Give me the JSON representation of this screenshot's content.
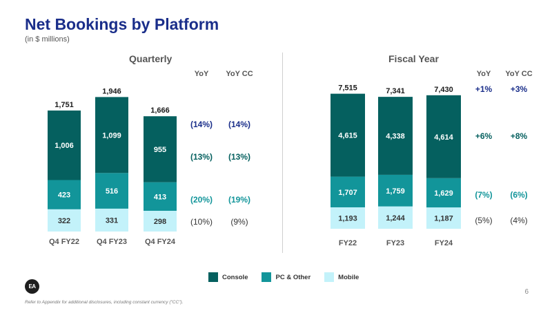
{
  "title": "Net Bookings by Platform",
  "subtitle": "(in $ millions)",
  "page_number": "6",
  "footnote": "Refer to Appendix for additional disclosures, including constant currency (\"CC\").",
  "logo_text": "EA",
  "colors": {
    "console": "#05605f",
    "pc_other": "#12959a",
    "mobile": "#c3f2fa"
  },
  "chart_data": [
    {
      "type": "bar",
      "stacked": true,
      "title": "Quarterly",
      "categories": [
        "Q4 FY22",
        "Q4 FY23",
        "Q4 FY24"
      ],
      "series": [
        {
          "name": "Mobile",
          "values": [
            322,
            331,
            298
          ]
        },
        {
          "name": "PC & Other",
          "values": [
            423,
            516,
            413
          ]
        },
        {
          "name": "Console",
          "values": [
            1006,
            1099,
            955
          ]
        }
      ],
      "value_labels": {
        "Mobile": [
          "322",
          "331",
          "298"
        ],
        "PC & Other": [
          "423",
          "516",
          "413"
        ],
        "Console": [
          "1,006",
          "1,099",
          "955"
        ]
      },
      "totals": [
        1751,
        1946,
        1666
      ],
      "total_labels": [
        "1,751",
        "1,946",
        "1,666"
      ],
      "yoy_headers": [
        "YoY",
        "YoY CC"
      ],
      "yoy": {
        "total": [
          "(14%)",
          "(14%)"
        ],
        "Console": [
          "(13%)",
          "(13%)"
        ],
        "PC & Other": [
          "(20%)",
          "(19%)"
        ],
        "Mobile": [
          "(10%)",
          "(9%)"
        ]
      }
    },
    {
      "type": "bar",
      "stacked": true,
      "title": "Fiscal Year",
      "categories": [
        "FY22",
        "FY23",
        "FY24"
      ],
      "series": [
        {
          "name": "Mobile",
          "values": [
            1193,
            1244,
            1187
          ]
        },
        {
          "name": "PC & Other",
          "values": [
            1707,
            1759,
            1629
          ]
        },
        {
          "name": "Console",
          "values": [
            4615,
            4338,
            4614
          ]
        }
      ],
      "value_labels": {
        "Mobile": [
          "1,193",
          "1,244",
          "1,187"
        ],
        "PC & Other": [
          "1,707",
          "1,759",
          "1,629"
        ],
        "Console": [
          "4,615",
          "4,338",
          "4,614"
        ]
      },
      "totals": [
        7515,
        7341,
        7430
      ],
      "total_labels": [
        "7,515",
        "7,341",
        "7,430"
      ],
      "yoy_headers": [
        "YoY",
        "YoY CC"
      ],
      "yoy": {
        "total": [
          "+1%",
          "+3%"
        ],
        "Console": [
          "+6%",
          "+8%"
        ],
        "PC & Other": [
          "(7%)",
          "(6%)"
        ],
        "Mobile": [
          "(5%)",
          "(4%)"
        ]
      }
    }
  ],
  "legend": [
    {
      "name": "Console",
      "color": "#05605f"
    },
    {
      "name": "PC & Other",
      "color": "#12959a"
    },
    {
      "name": "Mobile",
      "color": "#c3f2fa"
    }
  ]
}
